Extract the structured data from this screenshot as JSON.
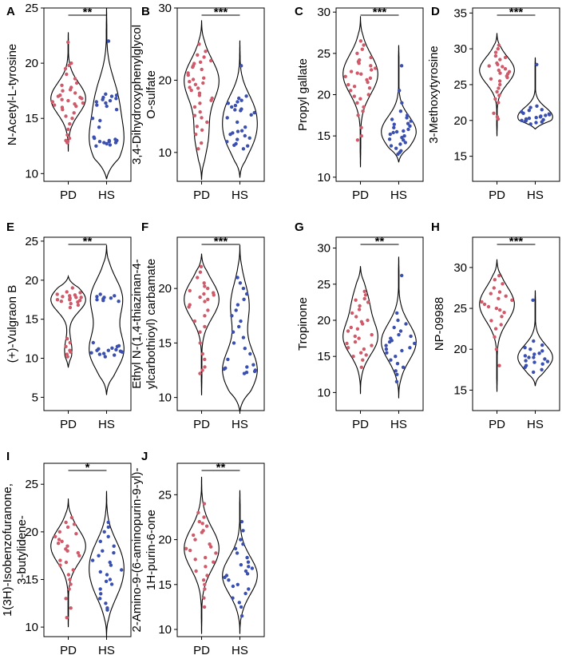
{
  "figure": {
    "colors": {
      "pd": "#cf5a6a",
      "hs": "#3a4fae",
      "outline": "#000000"
    }
  },
  "chart_data": [
    {
      "letter": "A",
      "type": "violin",
      "ylabel": [
        "N-Acetyl-L-tyrosine"
      ],
      "yticks": [
        10,
        15,
        20,
        25
      ],
      "ylim": [
        9.3,
        25.0
      ],
      "categories": [
        "PD",
        "HS"
      ],
      "significance": "**",
      "series": [
        {
          "name": "PD",
          "min": 12.0,
          "max": 22.8,
          "modes": [
            [
              16.8,
              1.0
            ]
          ],
          "values": [
            16.5,
            17.0,
            16.2,
            15.8,
            18.0,
            19.5,
            20.0,
            13.0,
            12.8,
            16.8,
            17.3,
            15.0,
            14.0,
            16.0,
            16.6,
            17.8,
            18.6,
            13.2,
            15.5,
            16.9,
            17.1,
            16.3,
            19.0,
            21.9,
            12.9,
            16.7,
            15.2,
            18.2,
            14.5,
            16.4,
            17.5,
            13.5,
            16.1,
            17.6,
            19.8
          ]
        },
        {
          "name": "HS",
          "min": 9.5,
          "max": 25.0,
          "modes": [
            [
              16.8,
              0.55
            ],
            [
              12.8,
              0.85
            ]
          ],
          "values": [
            16.8,
            17.0,
            16.5,
            12.8,
            13.0,
            12.5,
            22.0,
            16.2,
            17.1,
            12.9,
            13.1,
            15.0,
            14.2,
            16.6,
            12.7,
            13.3,
            16.9,
            12.6,
            17.2,
            16.4,
            13.2,
            12.8,
            15.8,
            16.7,
            16.1,
            12.9,
            14.8,
            13.0
          ]
        }
      ]
    },
    {
      "letter": "B",
      "type": "violin",
      "ylabel": [
        "3,4-Dihydroxyphenylglycol",
        "O-sulfate"
      ],
      "yticks": [
        10,
        20,
        30
      ],
      "ylim": [
        6.0,
        30.0
      ],
      "categories": [
        "PD",
        "HS"
      ],
      "significance": "***",
      "series": [
        {
          "name": "PD",
          "min": 6.2,
          "max": 28.3,
          "modes": [
            [
              20.0,
              0.9
            ],
            [
              12.5,
              0.35
            ]
          ],
          "values": [
            22.0,
            21.5,
            20.3,
            19.8,
            18.2,
            17.5,
            16.3,
            15.1,
            14.2,
            13.1,
            22.5,
            23.2,
            21.0,
            19.0,
            18.6,
            12.5,
            11.3,
            24.0,
            20.7,
            19.4,
            17.9,
            16.8,
            23.5,
            22.3,
            21.8,
            20.1,
            18.9,
            14.8,
            13.6,
            25.0,
            22.7,
            15.6,
            10.5,
            19.6,
            17.2
          ]
        },
        {
          "name": "HS",
          "min": 6.5,
          "max": 25.5,
          "modes": [
            [
              16.0,
              0.8
            ],
            [
              12.0,
              0.8
            ]
          ],
          "values": [
            16.5,
            15.8,
            17.2,
            12.0,
            11.5,
            12.3,
            13.5,
            10.9,
            16.0,
            17.0,
            22.0,
            15.5,
            11.8,
            12.9,
            14.2,
            16.8,
            11.2,
            12.5,
            17.5,
            15.2,
            11.0,
            13.0,
            16.3,
            10.5,
            12.7,
            15.9,
            14.8,
            17.8
          ]
        }
      ]
    },
    {
      "letter": "C",
      "type": "violin",
      "ylabel": [
        "Propyl gallate"
      ],
      "yticks": [
        10,
        15,
        20,
        25,
        30
      ],
      "ylim": [
        9.5,
        30.5
      ],
      "categories": [
        "PD",
        "HS"
      ],
      "significance": "***",
      "series": [
        {
          "name": "PD",
          "min": 11.2,
          "max": 29.5,
          "modes": [
            [
              22.5,
              0.95
            ]
          ],
          "values": [
            22.0,
            23.5,
            21.5,
            20.5,
            24.0,
            25.0,
            19.5,
            18.5,
            22.8,
            23.2,
            21.0,
            26.0,
            17.5,
            16.0,
            14.5,
            22.5,
            20.0,
            24.5,
            23.8,
            21.8,
            19.0,
            25.5,
            22.2,
            15.0,
            20.8,
            23.0,
            24.2,
            21.2,
            18.0,
            22.6,
            26.5,
            19.8
          ]
        },
        {
          "name": "HS",
          "min": 11.8,
          "max": 26.0,
          "modes": [
            [
              15.5,
              1.0
            ]
          ],
          "values": [
            15.5,
            16.0,
            14.5,
            17.0,
            13.5,
            15.0,
            16.5,
            14.0,
            18.0,
            12.8,
            15.8,
            16.2,
            14.8,
            17.5,
            13.2,
            23.5,
            15.2,
            16.8,
            14.2,
            19.0,
            15.6,
            13.8,
            16.4,
            14.6,
            17.2,
            15.4,
            20.5,
            13.0
          ]
        }
      ]
    },
    {
      "letter": "D",
      "type": "violin",
      "ylabel": [
        "3-Methoxytyrosine"
      ],
      "yticks": [
        15,
        20,
        25,
        30,
        35
      ],
      "ylim": [
        11.5,
        35.7
      ],
      "categories": [
        "PD",
        "HS"
      ],
      "significance": "***",
      "series": [
        {
          "name": "PD",
          "min": 17.8,
          "max": 32.2,
          "modes": [
            [
              27.0,
              1.0
            ]
          ],
          "values": [
            27.0,
            26.5,
            28.0,
            25.5,
            29.0,
            24.5,
            26.8,
            27.5,
            23.0,
            21.0,
            20.2,
            28.5,
            26.0,
            25.0,
            27.8,
            30.0,
            22.5,
            26.2,
            27.2,
            28.8,
            24.0,
            29.5,
            20.5,
            26.6,
            25.8,
            27.6,
            23.5,
            30.5
          ]
        },
        {
          "name": "HS",
          "min": 18.8,
          "max": 28.8,
          "modes": [
            [
              20.5,
              1.0
            ]
          ],
          "values": [
            20.5,
            20.0,
            21.0,
            19.8,
            20.8,
            21.5,
            20.2,
            19.5,
            22.0,
            20.6,
            20.3,
            21.2,
            19.9,
            20.7,
            27.8,
            20.4,
            21.8,
            20.1,
            19.7,
            20.9,
            21.4,
            20.0
          ]
        }
      ]
    },
    {
      "letter": "E",
      "type": "violin",
      "ylabel": [
        "(+)-Vulgraon B"
      ],
      "yticks": [
        5,
        10,
        15,
        20,
        25
      ],
      "ylim": [
        3.3,
        25.5
      ],
      "categories": [
        "PD",
        "HS"
      ],
      "significance": "**",
      "series": [
        {
          "name": "PD",
          "min": 8.8,
          "max": 20.5,
          "modes": [
            [
              17.5,
              0.95
            ],
            [
              11.0,
              0.2
            ]
          ],
          "values": [
            17.5,
            17.8,
            18.0,
            17.2,
            17.6,
            18.4,
            16.8,
            17.9,
            17.4,
            18.2,
            11.5,
            10.5,
            12.0,
            10.2,
            11.0,
            17.7,
            18.5,
            16.5,
            17.3,
            19.0,
            10.8,
            17.5,
            18.1,
            17.0,
            17.8,
            12.5
          ]
        },
        {
          "name": "HS",
          "min": 5.3,
          "max": 24.5,
          "modes": [
            [
              17.7,
              0.6
            ],
            [
              11.0,
              0.65
            ]
          ],
          "values": [
            17.8,
            17.5,
            18.0,
            17.6,
            11.0,
            10.8,
            11.2,
            10.5,
            11.5,
            10.9,
            17.9,
            17.7,
            11.3,
            10.7,
            12.0,
            17.4,
            11.1,
            10.6,
            17.3,
            10.4,
            11.0,
            18.2,
            10.2,
            11.6
          ]
        }
      ]
    },
    {
      "letter": "F",
      "type": "violin",
      "ylabel": [
        "Ethyl N-(1,4-thiazinan-4-",
        "ylcarbothioyl) carbamate"
      ],
      "yticks": [
        10,
        15,
        20
      ],
      "ylim": [
        8.8,
        24.7
      ],
      "categories": [
        "PD",
        "HS"
      ],
      "significance": "***",
      "series": [
        {
          "name": "PD",
          "min": 10.2,
          "max": 23.2,
          "modes": [
            [
              19.0,
              0.95
            ]
          ],
          "values": [
            19.5,
            18.5,
            20.0,
            19.0,
            17.5,
            21.0,
            16.0,
            18.0,
            19.8,
            20.5,
            12.5,
            12.2,
            13.5,
            15.0,
            18.8,
            19.2,
            21.5,
            17.0,
            14.0,
            18.3,
            20.2,
            16.5,
            19.6,
            22.0,
            12.8,
            19.4
          ]
        },
        {
          "name": "HS",
          "min": 8.7,
          "max": 24.0,
          "modes": [
            [
              18.5,
              0.45
            ],
            [
              12.5,
              0.85
            ]
          ],
          "values": [
            12.5,
            12.2,
            12.8,
            13.0,
            14.5,
            20.0,
            19.5,
            18.0,
            17.0,
            15.5,
            12.4,
            16.5,
            20.5,
            12.6,
            14.0,
            19.0,
            12.3,
            16.0,
            18.5,
            13.5,
            21.0,
            12.7,
            15.0,
            17.5
          ]
        }
      ]
    },
    {
      "letter": "G",
      "type": "violin",
      "ylabel": [
        "Tropinone"
      ],
      "yticks": [
        10,
        15,
        20,
        25,
        30
      ],
      "ylim": [
        7.5,
        31.5
      ],
      "categories": [
        "PD",
        "HS"
      ],
      "significance": "**",
      "series": [
        {
          "name": "PD",
          "min": 9.8,
          "max": 27.5,
          "modes": [
            [
              17.5,
              1.0
            ],
            [
              22.5,
              0.45
            ]
          ],
          "values": [
            17.5,
            16.0,
            18.5,
            15.0,
            19.5,
            22.0,
            23.0,
            14.5,
            17.0,
            20.0,
            21.5,
            16.5,
            18.0,
            22.5,
            15.5,
            19.0,
            13.5,
            24.0,
            17.8,
            16.8,
            21.0,
            18.8,
            23.5,
            15.2,
            20.5,
            16.2,
            19.8,
            22.8
          ]
        },
        {
          "name": "HS",
          "min": 9.2,
          "max": 28.8,
          "modes": [
            [
              17.0,
              1.0
            ]
          ],
          "values": [
            17.0,
            16.0,
            18.0,
            15.5,
            19.0,
            14.5,
            17.5,
            16.5,
            13.5,
            20.0,
            12.5,
            26.2,
            18.5,
            15.0,
            17.2,
            16.8,
            14.0,
            19.5,
            16.2,
            11.5,
            21.0,
            17.8,
            15.8,
            13.0
          ]
        }
      ]
    },
    {
      "letter": "H",
      "type": "violin",
      "ylabel": [
        "NP-09988"
      ],
      "yticks": [
        15,
        20,
        25,
        30
      ],
      "ylim": [
        12.5,
        33.7
      ],
      "categories": [
        "PD",
        "HS"
      ],
      "significance": "***",
      "series": [
        {
          "name": "PD",
          "min": 14.8,
          "max": 31.0,
          "modes": [
            [
              25.5,
              1.0
            ]
          ],
          "values": [
            25.5,
            26.0,
            24.5,
            27.0,
            23.5,
            28.0,
            25.0,
            22.5,
            26.5,
            24.0,
            29.0,
            21.5,
            18.0,
            25.8,
            26.8,
            24.8,
            27.5,
            23.0,
            28.5,
            20.0,
            25.2,
            26.2
          ]
        },
        {
          "name": "HS",
          "min": 15.5,
          "max": 27.2,
          "modes": [
            [
              19.0,
              1.0
            ]
          ],
          "values": [
            19.0,
            18.5,
            19.5,
            20.0,
            18.0,
            17.5,
            19.2,
            18.8,
            20.5,
            17.8,
            19.8,
            18.2,
            26.0,
            19.4,
            18.6,
            20.2,
            17.2,
            19.0,
            18.4,
            21.0
          ]
        }
      ]
    },
    {
      "letter": "I",
      "type": "violin",
      "ylabel": [
        "1(3H)-Isobenzofuranone,",
        "3-butylidene-"
      ],
      "yticks": [
        10,
        15,
        20,
        25
      ],
      "ylim": [
        9.0,
        27.2
      ],
      "categories": [
        "PD",
        "HS"
      ],
      "significance": "*",
      "series": [
        {
          "name": "PD",
          "min": 10.0,
          "max": 23.5,
          "modes": [
            [
              18.5,
              1.0
            ]
          ],
          "values": [
            18.5,
            19.0,
            17.5,
            20.0,
            16.5,
            21.0,
            18.0,
            19.5,
            15.5,
            20.5,
            14.5,
            17.0,
            21.5,
            16.0,
            13.0,
            18.8,
            19.8,
            12.0,
            17.8,
            20.8,
            15.0,
            18.2,
            11.0,
            19.2,
            16.8,
            14.0
          ]
        },
        {
          "name": "HS",
          "min": 9.0,
          "max": 24.3,
          "modes": [
            [
              17.5,
              0.6
            ],
            [
              14.5,
              0.55
            ]
          ],
          "values": [
            17.5,
            18.0,
            16.5,
            15.0,
            14.5,
            19.5,
            13.5,
            20.5,
            12.5,
            16.0,
            18.5,
            15.5,
            14.0,
            21.0,
            17.0,
            13.0,
            19.0,
            11.8,
            16.8,
            14.8,
            20.0,
            15.8,
            12.0,
            17.8
          ]
        }
      ]
    },
    {
      "letter": "J",
      "type": "violin",
      "ylabel": [
        "2-Amino-9-(6-aminopurin-9-yl)-",
        "1H-purin-6-one"
      ],
      "yticks": [
        10,
        15,
        20,
        25
      ],
      "ylim": [
        9.2,
        28.5
      ],
      "categories": [
        "PD",
        "HS"
      ],
      "significance": "**",
      "series": [
        {
          "name": "PD",
          "min": 9.5,
          "max": 27.0,
          "modes": [
            [
              19.0,
              1.0
            ]
          ],
          "values": [
            19.0,
            18.5,
            20.0,
            17.5,
            21.0,
            16.5,
            22.0,
            19.5,
            15.5,
            23.0,
            18.0,
            14.5,
            20.5,
            17.0,
            21.5,
            13.5,
            24.0,
            19.2,
            16.0,
            22.5,
            18.8,
            15.0,
            20.8,
            12.5,
            17.8,
            21.8
          ]
        },
        {
          "name": "HS",
          "min": 9.5,
          "max": 25.5,
          "modes": [
            [
              16.0,
              1.0
            ]
          ],
          "values": [
            16.0,
            15.5,
            17.0,
            14.5,
            18.0,
            16.5,
            19.0,
            13.5,
            15.0,
            20.0,
            17.5,
            12.5,
            21.0,
            16.2,
            14.0,
            18.5,
            22.0,
            15.8,
            13.0,
            17.2,
            19.5,
            14.8,
            11.5,
            16.8
          ]
        }
      ]
    }
  ]
}
